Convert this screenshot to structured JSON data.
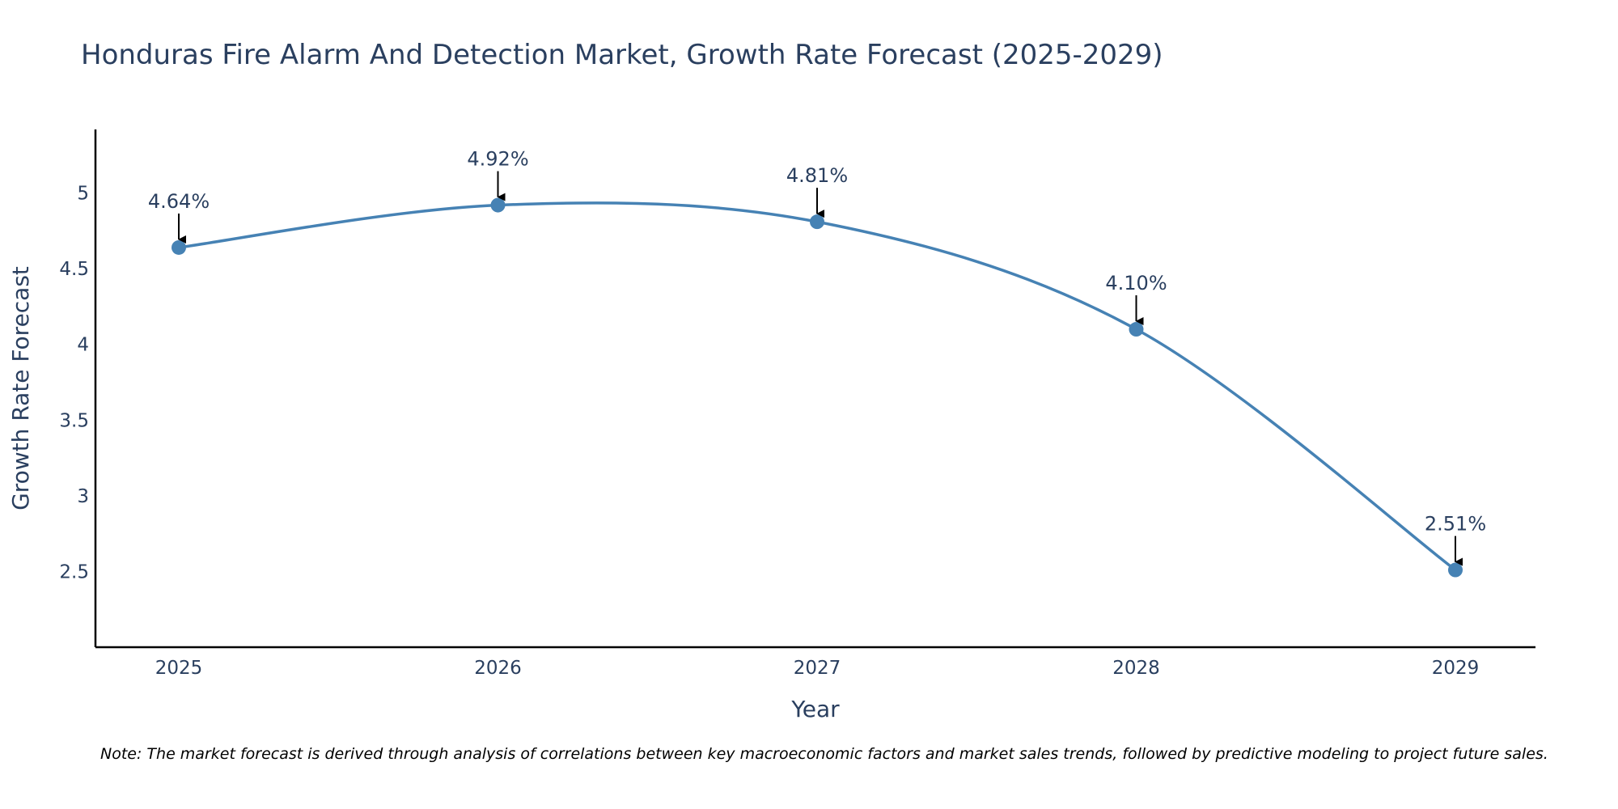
{
  "chart_data": {
    "type": "line",
    "title": "Honduras Fire Alarm And Detection Market, Growth Rate Forecast (2025-2029)",
    "xlabel": "Year",
    "ylabel": "Growth Rate Forecast",
    "x": [
      "2025",
      "2026",
      "2027",
      "2028",
      "2029"
    ],
    "series": [
      {
        "values": [
          4.64,
          4.92,
          4.81,
          4.1,
          2.51
        ]
      }
    ],
    "data_labels": [
      "4.64%",
      "4.92%",
      "4.81%",
      "4.10%",
      "2.51%"
    ],
    "ylim": [
      2.0,
      5.42
    ],
    "yticks": [
      2.5,
      3,
      3.5,
      4,
      4.5,
      5
    ],
    "ytick_labels": [
      "2.5",
      "3",
      "3.5",
      "4",
      "4.5",
      "5"
    ],
    "grid": false,
    "line_shape": "spline",
    "colors": {
      "series": "#4682b4",
      "text": "#2a3f5f",
      "axis": "#000000"
    }
  },
  "note": "Note: The market forecast is derived through analysis of correlations between key macroeconomic factors and market sales trends, followed by predictive modeling to project future sales."
}
